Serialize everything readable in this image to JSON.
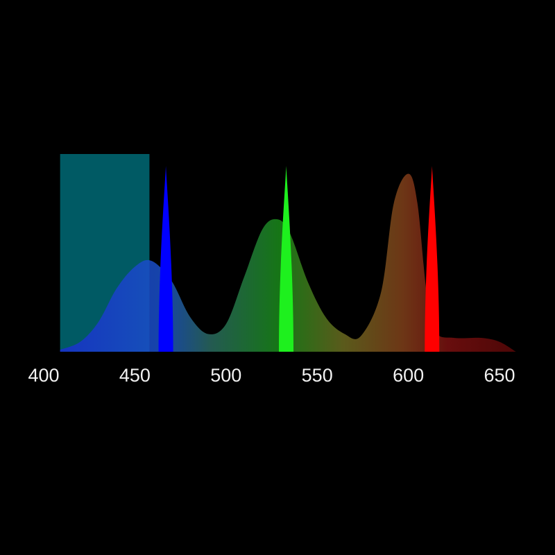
{
  "chart_data": {
    "type": "area",
    "xlim": [
      400,
      660
    ],
    "ylim": [
      0,
      1
    ],
    "grid": false,
    "x_ticks": [
      "400",
      "450",
      "500",
      "550",
      "600",
      "650"
    ],
    "background": "#000000",
    "band": {
      "x_start": 409,
      "x_end": 458,
      "value": 1.0,
      "color": "#005a64"
    },
    "broad_spectrum": {
      "x": [
        409,
        420,
        430,
        440,
        450,
        459,
        470,
        480,
        490,
        500,
        510,
        520,
        528,
        535,
        545,
        555,
        565,
        574,
        585,
        592,
        600,
        605,
        610,
        615,
        625,
        640,
        650,
        659
      ],
      "y": [
        0.01,
        0.05,
        0.15,
        0.32,
        0.43,
        0.46,
        0.36,
        0.18,
        0.09,
        0.14,
        0.38,
        0.62,
        0.67,
        0.6,
        0.35,
        0.17,
        0.09,
        0.08,
        0.3,
        0.75,
        0.9,
        0.75,
        0.3,
        0.1,
        0.07,
        0.07,
        0.05,
        0.0
      ]
    },
    "narrow_peaks": [
      {
        "center": 467,
        "value": 0.94,
        "width": 8,
        "color": "#0000ff"
      },
      {
        "center": 533,
        "value": 0.94,
        "width": 8,
        "color": "#1ef01e"
      },
      {
        "center": 613,
        "value": 0.94,
        "width": 8,
        "color": "#ff0000"
      }
    ]
  }
}
